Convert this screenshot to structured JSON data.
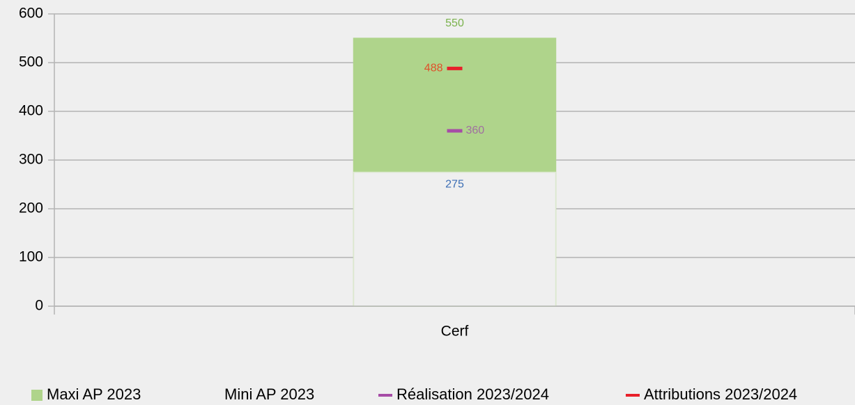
{
  "chart_data": {
    "type": "bar",
    "categories": [
      "Cerf"
    ],
    "series": [
      {
        "name": "Maxi AP 2023",
        "type": "bar",
        "color": "#afd48b",
        "label_color": "#7ab24c",
        "values": [
          550
        ]
      },
      {
        "name": "Mini AP 2023",
        "type": "bar",
        "color": "#efefef",
        "label_color": "#3c6eb4",
        "values": [
          275
        ]
      },
      {
        "name": "Réalisation 2023/2024",
        "type": "marker",
        "color": "#a64ca6",
        "label_color": "#a070a0",
        "values": [
          360
        ]
      },
      {
        "name": "Attributions 2023/2024",
        "type": "marker",
        "color": "#e8202a",
        "label_color": "#e0502a",
        "values": [
          488
        ]
      }
    ],
    "ylim": [
      0,
      600
    ],
    "yticks": [
      0,
      100,
      200,
      300,
      400,
      500,
      600
    ],
    "grid": true,
    "legend": "bottom"
  }
}
